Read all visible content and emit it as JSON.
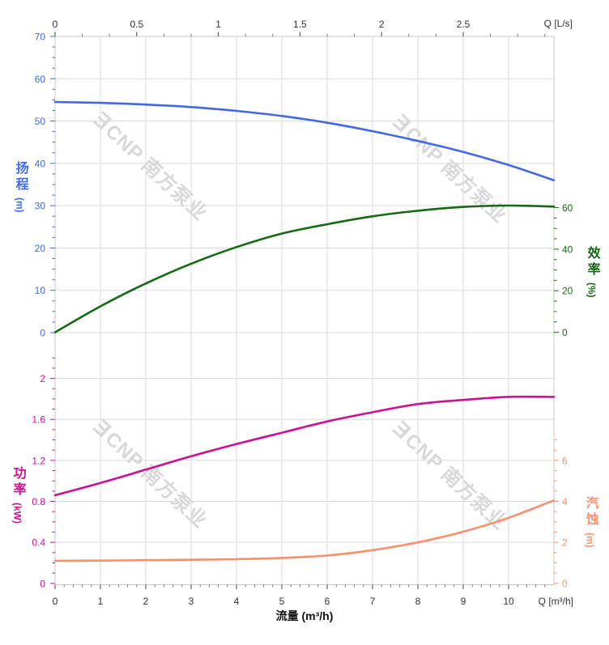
{
  "colors": {
    "head": "#4169E1",
    "efficiency": "#146914",
    "power": "#CC1193",
    "npsh": "#F8906E",
    "grid": "#DBDBDB",
    "box": "#C9C9C9",
    "axis_text": "#333333",
    "tick_dark": "#444444",
    "watermark": "#D8D8D8"
  },
  "watermark": {
    "logo": "Ǝ",
    "text": "CNP 南方泵业"
  },
  "axis_titles": {
    "head": {
      "title": "扬程",
      "unit": "(m)"
    },
    "efficiency": {
      "title": "效率",
      "unit": "(%)"
    },
    "power": {
      "title": "功率",
      "unit": "(kW)"
    },
    "npsh": {
      "title": "汽蚀",
      "unit": "(m)"
    }
  },
  "top_axis_label": "Q [L/s]",
  "bottom_axis_label": "Q [m³/h]",
  "bottom_title": "流量 (m³/h)",
  "chart_data": {
    "type": "line",
    "title": "",
    "grid": true,
    "x_axis_bottom": {
      "label": "流量 (m³/h)",
      "unit": "Q [m³/h]",
      "range": [
        0,
        11
      ],
      "ticks": [
        0,
        1,
        2,
        3,
        4,
        5,
        6,
        7,
        8,
        9,
        10
      ]
    },
    "x_axis_top": {
      "unit": "Q [L/s]",
      "range": [
        0,
        3.06
      ],
      "ticks": [
        0,
        0.5,
        1,
        1.5,
        2,
        2.5
      ]
    },
    "y_axes": [
      {
        "id": "head",
        "label": "扬程",
        "unit": "m",
        "side": "left",
        "section": "upper",
        "range": [
          0,
          70
        ],
        "ticks": [
          70,
          60,
          50,
          40,
          30,
          20,
          10,
          0
        ]
      },
      {
        "id": "efficiency",
        "label": "效率",
        "unit": "%",
        "side": "right",
        "section": "upper",
        "range": [
          0,
          60
        ],
        "ticks": [
          60,
          40,
          20,
          0
        ]
      },
      {
        "id": "power",
        "label": "功率",
        "unit": "kW",
        "side": "left",
        "section": "lower",
        "range": [
          0,
          2
        ],
        "ticks": [
          2,
          1.6,
          1.2,
          0.8,
          0.4,
          0
        ]
      },
      {
        "id": "npsh",
        "label": "汽蚀",
        "unit": "m",
        "side": "right",
        "section": "lower",
        "range": [
          0,
          6
        ],
        "ticks": [
          6,
          4,
          2,
          0
        ]
      }
    ],
    "series": [
      {
        "name": "head",
        "axis": "head",
        "x_unit": "m³/h",
        "x": [
          0,
          1,
          2,
          3,
          4,
          5,
          6,
          7,
          8,
          9,
          10,
          11
        ],
        "values": [
          54.5,
          54.3,
          53.9,
          53.3,
          52.4,
          51.2,
          49.6,
          47.6,
          45.3,
          42.7,
          39.6,
          36.0
        ]
      },
      {
        "name": "efficiency",
        "axis": "efficiency",
        "x_unit": "m³/h",
        "x": [
          0,
          1,
          2,
          3,
          4,
          5,
          6,
          7,
          8,
          9,
          10,
          11
        ],
        "values": [
          0,
          12.5,
          23.5,
          33,
          41,
          47.5,
          52,
          55.8,
          58.5,
          60.3,
          61,
          60.5
        ]
      },
      {
        "name": "power",
        "axis": "power",
        "x_unit": "m³/h",
        "x": [
          0,
          1,
          2,
          3,
          4,
          5,
          6,
          7,
          8,
          9,
          10,
          11
        ],
        "values": [
          0.86,
          0.98,
          1.11,
          1.24,
          1.36,
          1.47,
          1.58,
          1.67,
          1.75,
          1.79,
          1.82,
          1.82
        ]
      },
      {
        "name": "npsh",
        "axis": "npsh",
        "x_unit": "m³/h",
        "x": [
          0,
          1,
          2,
          3,
          4,
          5,
          6,
          7,
          8,
          9,
          10,
          11
        ],
        "values": [
          1.1,
          1.11,
          1.13,
          1.15,
          1.18,
          1.24,
          1.36,
          1.62,
          2.0,
          2.52,
          3.2,
          4.05
        ]
      }
    ]
  }
}
